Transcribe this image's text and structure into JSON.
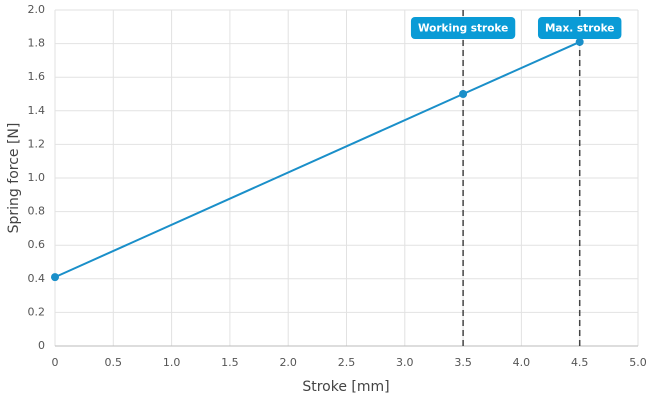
{
  "chart_data": {
    "type": "line",
    "x_label": "Stroke [mm]",
    "y_label": "Spring force [N]",
    "x": [
      0,
      3.5,
      4.5
    ],
    "values": [
      0.41,
      1.5,
      1.81
    ],
    "color": "#1a8fc9",
    "xlim": [
      0,
      5
    ],
    "xticks": [
      0,
      0.5,
      {
        "value": 1,
        "label": "1.0"
      },
      1.5,
      {
        "value": 2,
        "label": "2.0"
      },
      2.5,
      {
        "value": 3,
        "label": "3.0"
      },
      3.5,
      {
        "value": 4,
        "label": "4.0"
      },
      4.5,
      {
        "value": 5,
        "label": "5.0"
      }
    ],
    "ylim": [
      0,
      2
    ],
    "yticks": [
      0,
      0.2,
      0.4,
      0.6,
      0.8,
      {
        "value": 1,
        "label": "1.0"
      },
      1.2,
      1.4,
      1.6,
      1.8,
      {
        "value": 2,
        "label": "2.0"
      }
    ],
    "grid": true,
    "annotations": [
      {
        "x": 3.5,
        "label": "Working stroke"
      },
      {
        "x": 4.5,
        "label": "Max. stroke"
      }
    ],
    "annotation_color": "#0a9bd6"
  }
}
